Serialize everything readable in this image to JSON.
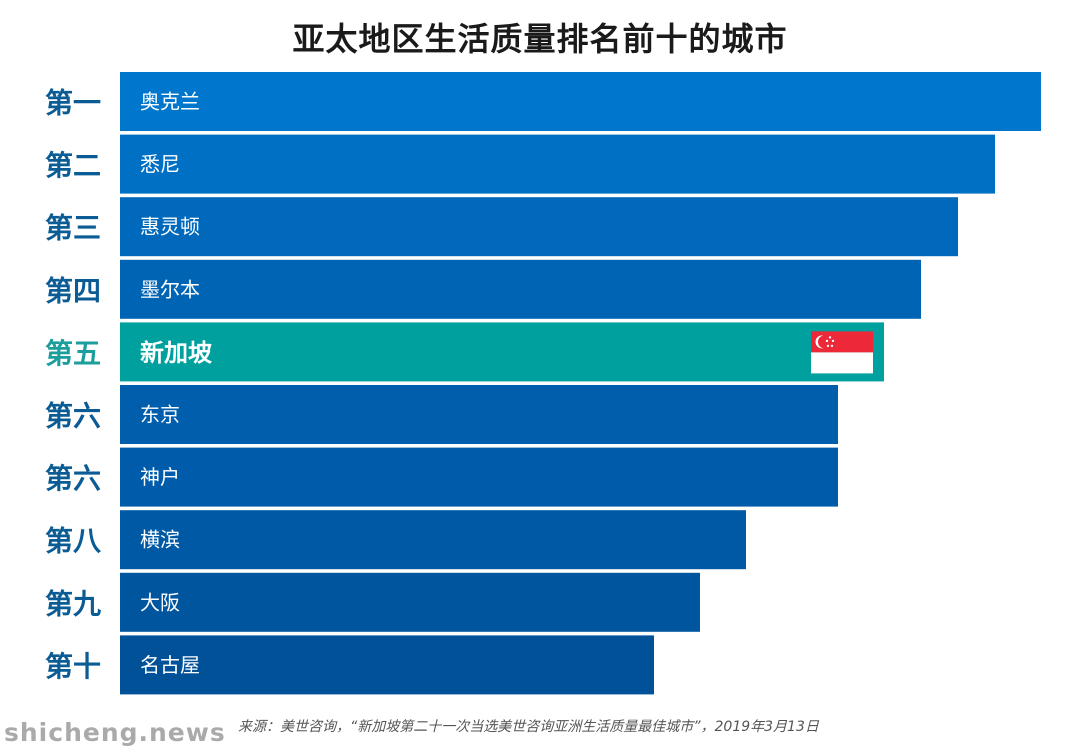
{
  "chart_data": {
    "type": "bar",
    "orientation": "horizontal",
    "title": "亚太地区生活质量排名前十的城市",
    "rank_labels": [
      "第一",
      "第二",
      "第三",
      "第四",
      "第五",
      "第六",
      "第六",
      "第八",
      "第九",
      "第十"
    ],
    "categories": [
      "奥克兰",
      "悉尼",
      "惠灵顿",
      "墨尔本",
      "新加坡",
      "东京",
      "神户",
      "横滨",
      "大阪",
      "名古屋"
    ],
    "values": [
      10,
      9.5,
      9.1,
      8.7,
      8.3,
      7.8,
      7.8,
      6.8,
      6.3,
      5.8
    ],
    "highlight_index": 4,
    "colors": {
      "bars": [
        "#0077cc",
        "#0070c4",
        "#0069bc",
        "#0064b5",
        "#00a09e",
        "#005eac",
        "#005cab",
        "#0059a5",
        "#00559f",
        "#005197"
      ],
      "rank_text": "#0b5c94",
      "highlight_rank_text": "#1b9e9c",
      "bar_label": "#ffffff"
    }
  },
  "flag_icon": "singapore-flag-icon",
  "source": "来源：美世咨询，“新加坡第二十一次当选美世咨询亚洲生活质量最佳城市”，2019年3月13日",
  "watermark": "shicheng.news"
}
